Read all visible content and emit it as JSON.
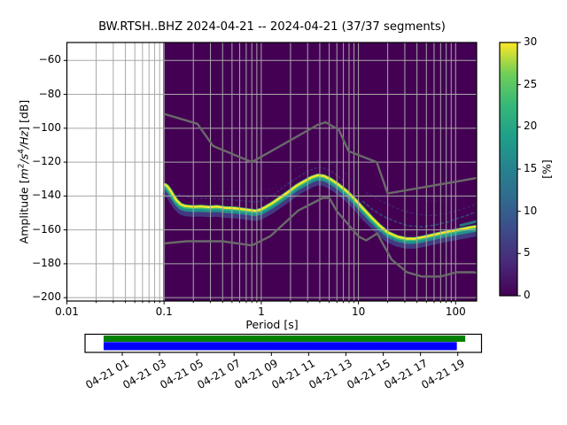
{
  "title": "BW.RTSH..BHZ   2024-04-21 -- 2024-04-21  (37/37 segments)",
  "axes": {
    "xlabel": "Period [s]",
    "ylabel": {
      "prefix": "Amplitude [",
      "m": "m",
      "m_exp": "2",
      "s": "/s",
      "s_exp": "4",
      "hz": "/Hz",
      "suffix": "] [dB]"
    },
    "xticks": [
      "0.01",
      "0.1",
      "1",
      "10",
      "100"
    ],
    "yticks": [
      "−60",
      "−80",
      "−100",
      "−120",
      "−140",
      "−160",
      "−180",
      "−200"
    ]
  },
  "colorbar": {
    "label": "[%]",
    "ticks": [
      "0",
      "5",
      "10",
      "15",
      "20",
      "25",
      "30"
    ]
  },
  "timeline": {
    "date_labels": [
      "04-21 01",
      "04-21 03",
      "04-21 05",
      "04-21 07",
      "04-21 09",
      "04-21 11",
      "04-21 13",
      "04-21 15",
      "04-21 17",
      "04-21 19"
    ]
  },
  "chart_data": {
    "type": "heatmap",
    "title": "BW.RTSH..BHZ   2024-04-21 -- 2024-04-21  (37/37 segments)",
    "station": "BW.RTSH..BHZ",
    "date_start": "2024-04-21",
    "date_end": "2024-04-21",
    "segments_used": 37,
    "segments_total": 37,
    "xlabel": "Period [s]",
    "ylabel": "Amplitude [m^2/s^4/Hz] [dB]",
    "xscale": "log",
    "xlim": [
      0.01,
      164
    ],
    "ylim": [
      -202,
      -49
    ],
    "xtick_values": [
      0.01,
      0.1,
      1,
      10,
      100
    ],
    "ytick_values": [
      -60,
      -80,
      -100,
      -120,
      -140,
      -160,
      -180,
      -200
    ],
    "grid": true,
    "grid_color": "#a8a8a8",
    "background_color": "#440154",
    "data_period_range": [
      0.098,
      164
    ],
    "colorbar": {
      "label": "[%]",
      "min": 0,
      "max": 30,
      "tick_step": 5,
      "colormap": "viridis",
      "stops": [
        [
          0,
          "#440154"
        ],
        [
          0.125,
          "#482878"
        ],
        [
          0.25,
          "#3e4989"
        ],
        [
          0.375,
          "#31688e"
        ],
        [
          0.5,
          "#26828e"
        ],
        [
          0.625,
          "#1f9e89"
        ],
        [
          0.75,
          "#35b779"
        ],
        [
          0.875,
          "#6ece58"
        ],
        [
          1,
          "#fde725"
        ]
      ]
    },
    "mode_curve": [
      [
        0.1,
        -133
      ],
      [
        0.107,
        -134
      ],
      [
        0.115,
        -136.5
      ],
      [
        0.124,
        -139.5
      ],
      [
        0.134,
        -142.5
      ],
      [
        0.148,
        -145
      ],
      [
        0.165,
        -146
      ],
      [
        0.2,
        -146.4
      ],
      [
        0.24,
        -146.2
      ],
      [
        0.29,
        -146.6
      ],
      [
        0.35,
        -146.3
      ],
      [
        0.43,
        -147
      ],
      [
        0.53,
        -147.2
      ],
      [
        0.64,
        -147.8
      ],
      [
        0.76,
        -148.4
      ],
      [
        0.88,
        -148.8
      ],
      [
        0.99,
        -148
      ],
      [
        1.12,
        -146.4
      ],
      [
        1.3,
        -144.2
      ],
      [
        1.55,
        -141.2
      ],
      [
        1.9,
        -137.6
      ],
      [
        2.3,
        -134
      ],
      [
        2.8,
        -131.2
      ],
      [
        3.3,
        -129
      ],
      [
        3.8,
        -127.8
      ],
      [
        4.4,
        -128.2
      ],
      [
        5.2,
        -130.2
      ],
      [
        6.2,
        -133.2
      ],
      [
        7.5,
        -137
      ],
      [
        9,
        -141.5
      ],
      [
        11,
        -147
      ],
      [
        13.5,
        -152.5
      ],
      [
        16.5,
        -157.5
      ],
      [
        20,
        -161.5
      ],
      [
        25,
        -164
      ],
      [
        31,
        -165.2
      ],
      [
        38,
        -165.2
      ],
      [
        47,
        -164.2
      ],
      [
        58,
        -163
      ],
      [
        72,
        -161.8
      ],
      [
        90,
        -160.7
      ],
      [
        110,
        -159.8
      ],
      [
        135,
        -158.8
      ],
      [
        164,
        -158
      ]
    ],
    "mode_band_layers": [
      {
        "name": "halo-blue",
        "dy": -4.2,
        "color": "#433e85",
        "width": 6.5,
        "opacity": 0.92
      },
      {
        "name": "teal",
        "dy": -1.9,
        "color": "#21918c",
        "width": 4.6,
        "opacity": 1
      },
      {
        "name": "green",
        "dy": -0.2,
        "color": "#44bf70",
        "width": 4.6,
        "opacity": 1
      },
      {
        "name": "mode-yellow",
        "dy": 0,
        "color": "#fde725",
        "width": 2.2,
        "opacity": 1
      }
    ],
    "spread_bands": [
      {
        "name": "upper-fringe-short-period",
        "color": "#414487",
        "width": 1.6,
        "opacity": 0.6,
        "dash": "3 2",
        "points": [
          [
            0.14,
            -139
          ],
          [
            0.2,
            -141.3
          ],
          [
            0.3,
            -141.5
          ],
          [
            0.5,
            -142.2
          ],
          [
            0.7,
            -143
          ],
          [
            0.9,
            -143.6
          ],
          [
            1.1,
            -141.6
          ],
          [
            1.4,
            -138.6
          ],
          [
            1.8,
            -133.5
          ],
          [
            2.3,
            -129.5
          ],
          [
            2.9,
            -126
          ],
          [
            3.5,
            -123.8
          ],
          [
            4.2,
            -123.2
          ],
          [
            5,
            -124.8
          ],
          [
            6,
            -127.8
          ],
          [
            7,
            -131
          ]
        ]
      },
      {
        "name": "upper-streak-peak",
        "color": "#414487",
        "width": 1.3,
        "opacity": 0.4,
        "dash": "2 2.5",
        "points": [
          [
            2.2,
            -124.5
          ],
          [
            3,
            -121
          ],
          [
            3.8,
            -119
          ],
          [
            4.6,
            -119.5
          ],
          [
            5.5,
            -121.5
          ],
          [
            6.5,
            -124.5
          ],
          [
            8,
            -128.5
          ],
          [
            9.5,
            -133.5
          ]
        ]
      },
      {
        "name": "faint-upper-midband",
        "color": "#414487",
        "width": 1.2,
        "opacity": 0.3,
        "dash": "2 3",
        "points": [
          [
            0.3,
            -137.8
          ],
          [
            0.5,
            -137.2
          ],
          [
            0.8,
            -138.2
          ],
          [
            1.2,
            -136.2
          ],
          [
            1.6,
            -133.8
          ]
        ]
      },
      {
        "name": "fan-teal-long-period",
        "color": "#2a788e",
        "width": 1.7,
        "opacity": 0.55,
        "dash": "4 2",
        "points": [
          [
            11,
            -143
          ],
          [
            14,
            -148
          ],
          [
            18,
            -152
          ],
          [
            24,
            -155
          ],
          [
            32,
            -157.5
          ],
          [
            45,
            -158.2
          ],
          [
            60,
            -157.2
          ],
          [
            80,
            -155.6
          ],
          [
            105,
            -153.2
          ],
          [
            135,
            -151.2
          ],
          [
            164,
            -149.2
          ]
        ]
      },
      {
        "name": "fan-blue-mid",
        "color": "#414487",
        "width": 1.4,
        "opacity": 0.5,
        "dash": "3 2.5",
        "points": [
          [
            12,
            -138
          ],
          [
            16,
            -142
          ],
          [
            22,
            -146
          ],
          [
            30,
            -149
          ],
          [
            42,
            -151
          ],
          [
            58,
            -151.6
          ],
          [
            80,
            -150.2
          ],
          [
            110,
            -148.2
          ],
          [
            140,
            -146.2
          ],
          [
            164,
            -144.8
          ]
        ]
      },
      {
        "name": "fan-blue-outer",
        "color": "#414487",
        "width": 1.2,
        "opacity": 0.3,
        "dash": "2 3",
        "points": [
          [
            15,
            -133.5
          ],
          [
            25,
            -138.5
          ],
          [
            40,
            -142
          ],
          [
            60,
            -143.2
          ],
          [
            90,
            -142.2
          ],
          [
            130,
            -140.8
          ],
          [
            164,
            -139.8
          ]
        ]
      },
      {
        "name": "lower-fringe-long-period",
        "color": "#414487",
        "width": 1.6,
        "opacity": 0.5,
        "dash": "3 2",
        "points": [
          [
            10,
            -152.5
          ],
          [
            14,
            -158.5
          ],
          [
            19,
            -163.5
          ],
          [
            25,
            -167
          ],
          [
            33,
            -168.8
          ],
          [
            45,
            -168.2
          ],
          [
            60,
            -167
          ],
          [
            80,
            -165.6
          ],
          [
            105,
            -164.2
          ],
          [
            135,
            -163.2
          ],
          [
            164,
            -162.6
          ]
        ]
      },
      {
        "name": "teal-right-edge",
        "color": "#21918c",
        "width": 3,
        "opacity": 0.8,
        "dash": "",
        "points": [
          [
            110,
            -157.5
          ],
          [
            135,
            -156.2
          ],
          [
            164,
            -155
          ]
        ]
      }
    ],
    "noise_models": {
      "color": "#6a6a6a",
      "nhnm": [
        [
          0.1,
          -91.5
        ],
        [
          0.22,
          -97.4
        ],
        [
          0.32,
          -110.5
        ],
        [
          0.8,
          -120
        ],
        [
          3.8,
          -98
        ],
        [
          4.6,
          -96.5
        ],
        [
          6.3,
          -101
        ],
        [
          7.9,
          -113.5
        ],
        [
          15.4,
          -120
        ],
        [
          20,
          -138.5
        ],
        [
          164,
          -129.4
        ]
      ],
      "nlnm": [
        [
          0.1,
          -168
        ],
        [
          0.17,
          -166.7
        ],
        [
          0.4,
          -166.7
        ],
        [
          0.8,
          -169.2
        ],
        [
          1.24,
          -163.7
        ],
        [
          2.4,
          -148.6
        ],
        [
          4.3,
          -141.1
        ],
        [
          5,
          -141.1
        ],
        [
          6,
          -149
        ],
        [
          10,
          -163.8
        ],
        [
          12,
          -166.2
        ],
        [
          15.6,
          -162.1
        ],
        [
          21.9,
          -177.5
        ],
        [
          31.6,
          -185
        ],
        [
          45,
          -187.5
        ],
        [
          70,
          -187.5
        ],
        [
          101,
          -185
        ],
        [
          154,
          -185
        ],
        [
          164,
          -185.3
        ]
      ]
    },
    "timeline": {
      "tick_hours": [
        1,
        3,
        5,
        7,
        9,
        11,
        13,
        15,
        17,
        19
      ],
      "green_span_hours": [
        0,
        19.4
      ],
      "blue_span_hours": [
        0,
        18.95
      ],
      "green_color": "#008000",
      "blue_color": "#0000ff"
    }
  }
}
